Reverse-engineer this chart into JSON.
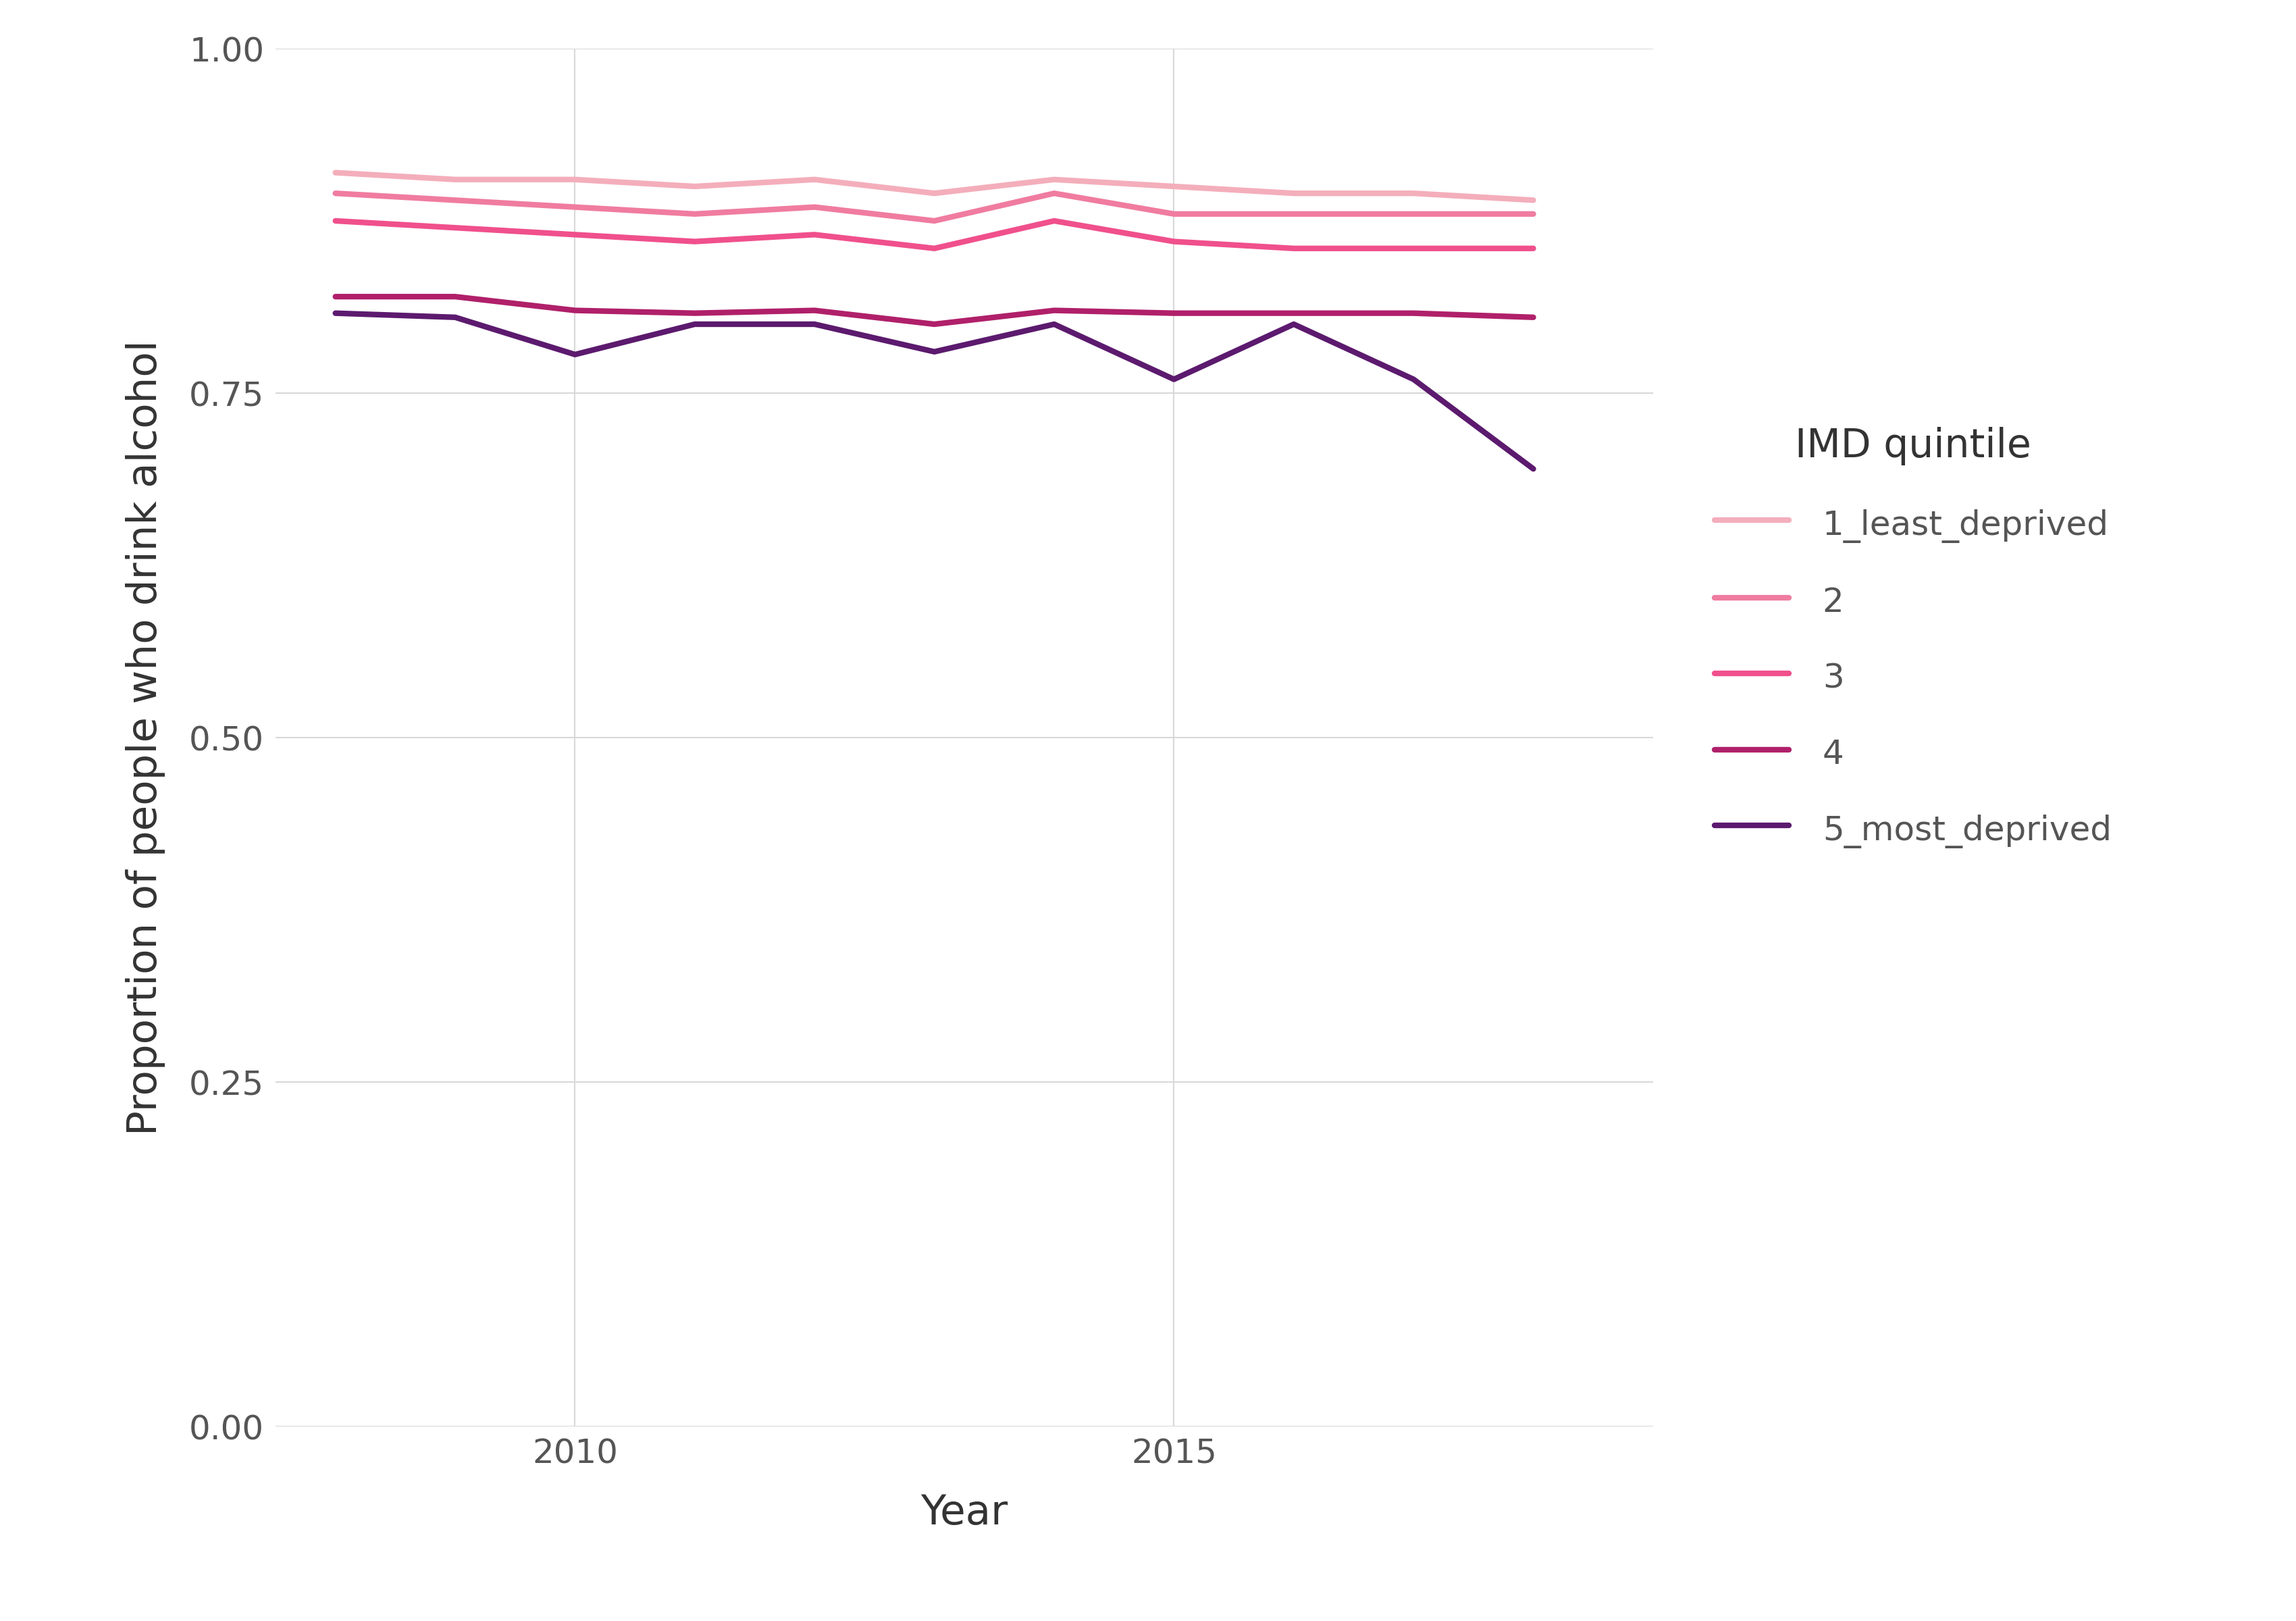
{
  "years": [
    2008,
    2009,
    2010,
    2011,
    2012,
    2013,
    2014,
    2015,
    2016,
    2017,
    2018
  ],
  "series": {
    "1_least_deprived": [
      0.91,
      0.905,
      0.905,
      0.9,
      0.905,
      0.895,
      0.905,
      0.9,
      0.895,
      0.895,
      0.89
    ],
    "2": [
      0.895,
      0.89,
      0.885,
      0.88,
      0.885,
      0.875,
      0.895,
      0.88,
      0.88,
      0.88,
      0.88
    ],
    "3": [
      0.875,
      0.87,
      0.865,
      0.86,
      0.865,
      0.855,
      0.875,
      0.86,
      0.855,
      0.855,
      0.855
    ],
    "4": [
      0.82,
      0.82,
      0.81,
      0.808,
      0.81,
      0.8,
      0.81,
      0.808,
      0.808,
      0.808,
      0.805
    ],
    "5_most_deprived": [
      0.808,
      0.805,
      0.778,
      0.8,
      0.8,
      0.78,
      0.8,
      0.76,
      0.8,
      0.76,
      0.695
    ]
  },
  "colors": {
    "1_least_deprived": "#F4AEBB",
    "2": "#F07CA0",
    "3": "#F0508C",
    "4": "#B0206A",
    "5_most_deprived": "#5C1A6E"
  },
  "legend_labels": {
    "1_least_deprived": "1_least_deprived",
    "2": "2",
    "3": "3",
    "4": "4",
    "5_most_deprived": "5_most_deprived"
  },
  "xlabel": "Year",
  "ylabel": "Proportion of people who drink alcohol",
  "legend_title": "IMD quintile",
  "ylim": [
    0.0,
    1.0
  ],
  "yticks": [
    0.0,
    0.25,
    0.5,
    0.75,
    1.0
  ],
  "xlim": [
    2007.5,
    2019.0
  ],
  "xticks": [
    2010,
    2015
  ],
  "background_color": "#ffffff",
  "grid_color": "#d8d8d8",
  "line_width": 6.0
}
